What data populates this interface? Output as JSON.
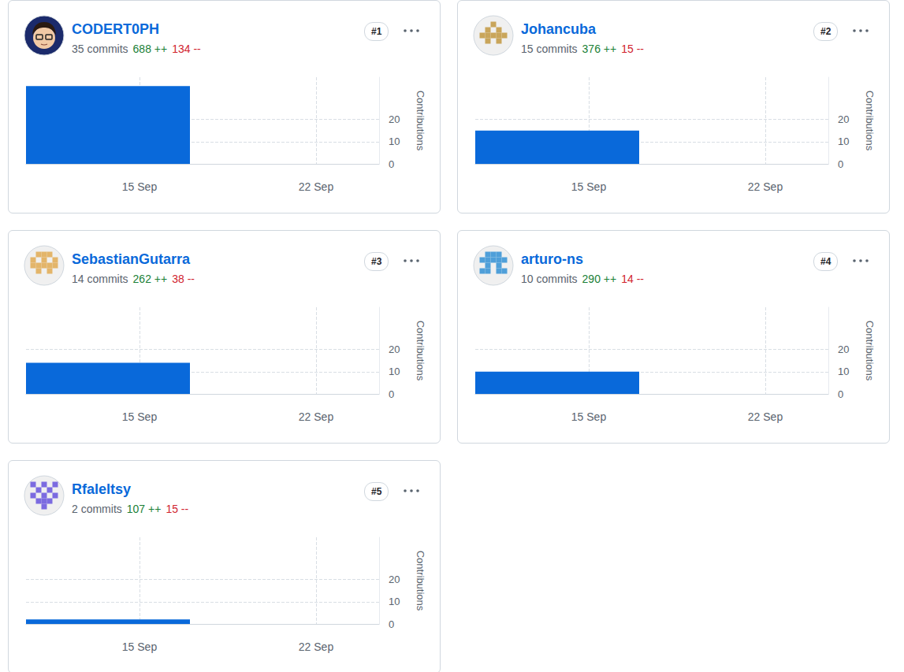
{
  "chart_data": [
    {
      "type": "histogram",
      "title": "CODERT0PH",
      "subtitle": "35 commits",
      "annotations": [
        "688 ++",
        "134 --",
        "#1"
      ],
      "ylabel": "Contributions",
      "bins": [
        10.5,
        17
      ],
      "values": [
        35
      ],
      "color": "#0969da",
      "xlim": [
        10.5,
        24.5
      ],
      "xticks": [
        {
          "value": 15,
          "label": "15 Sep"
        },
        {
          "value": 22,
          "label": "22 Sep"
        }
      ],
      "ylim": [
        0,
        39
      ],
      "yticks": [
        0,
        10,
        20
      ],
      "grid": true
    },
    {
      "type": "histogram",
      "title": "Johancuba",
      "subtitle": "15 commits",
      "annotations": [
        "376 ++",
        "15 --",
        "#2"
      ],
      "ylabel": "Contributions",
      "bins": [
        10.5,
        17
      ],
      "values": [
        15
      ],
      "color": "#0969da",
      "xlim": [
        10.5,
        24.5
      ],
      "xticks": [
        {
          "value": 15,
          "label": "15 Sep"
        },
        {
          "value": 22,
          "label": "22 Sep"
        }
      ],
      "ylim": [
        0,
        39
      ],
      "yticks": [
        0,
        10,
        20
      ],
      "grid": true
    },
    {
      "type": "histogram",
      "title": "SebastianGutarra",
      "subtitle": "14 commits",
      "annotations": [
        "262 ++",
        "38 --",
        "#3"
      ],
      "ylabel": "Contributions",
      "bins": [
        10.5,
        17
      ],
      "values": [
        14
      ],
      "color": "#0969da",
      "xlim": [
        10.5,
        24.5
      ],
      "xticks": [
        {
          "value": 15,
          "label": "15 Sep"
        },
        {
          "value": 22,
          "label": "22 Sep"
        }
      ],
      "ylim": [
        0,
        39
      ],
      "yticks": [
        0,
        10,
        20
      ],
      "grid": true
    },
    {
      "type": "histogram",
      "title": "arturo-ns",
      "subtitle": "10 commits",
      "annotations": [
        "290 ++",
        "14 --",
        "#4"
      ],
      "ylabel": "Contributions",
      "bins": [
        10.5,
        17
      ],
      "values": [
        10
      ],
      "color": "#0969da",
      "xlim": [
        10.5,
        24.5
      ],
      "xticks": [
        {
          "value": 15,
          "label": "15 Sep"
        },
        {
          "value": 22,
          "label": "22 Sep"
        }
      ],
      "ylim": [
        0,
        39
      ],
      "yticks": [
        0,
        10,
        20
      ],
      "grid": true
    },
    {
      "type": "histogram",
      "title": "Rfaleltsy",
      "subtitle": "2 commits",
      "annotations": [
        "107 ++",
        "15 --",
        "#5"
      ],
      "ylabel": "Contributions",
      "bins": [
        10.5,
        17
      ],
      "values": [
        2
      ],
      "color": "#0969da",
      "xlim": [
        10.5,
        24.5
      ],
      "xticks": [
        {
          "value": 15,
          "label": "15 Sep"
        },
        {
          "value": 22,
          "label": "22 Sep"
        }
      ],
      "ylim": [
        0,
        39
      ],
      "yticks": [
        0,
        10,
        20
      ],
      "grid": true
    }
  ]
}
